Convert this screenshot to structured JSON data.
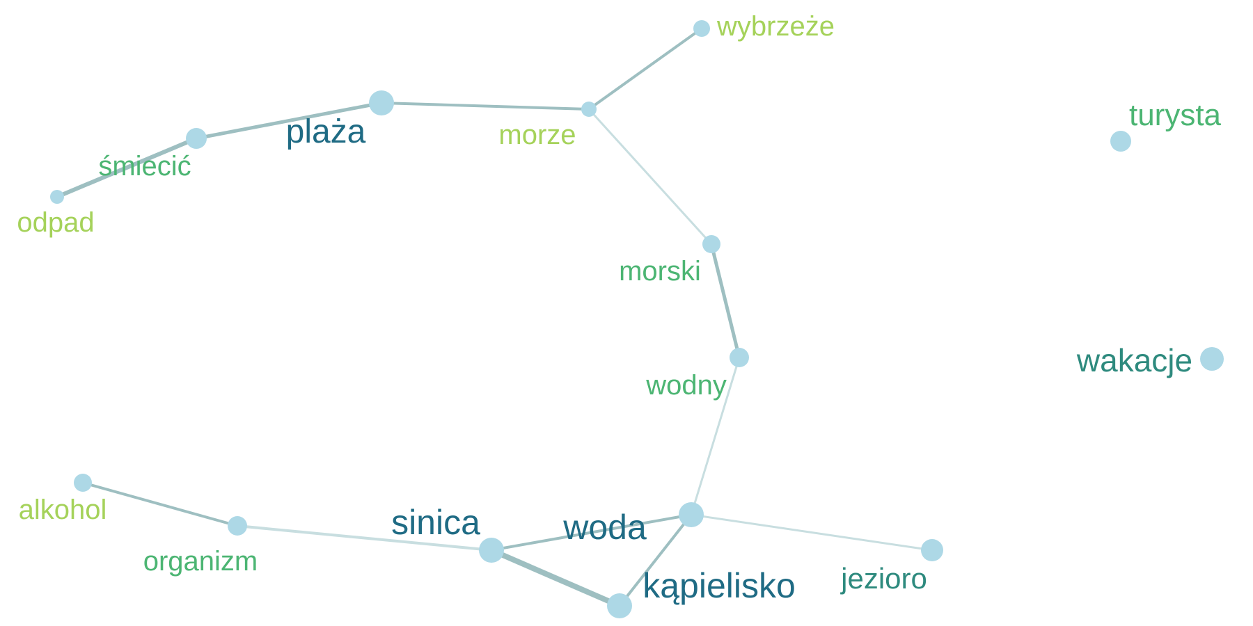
{
  "colors": {
    "node_fill": "#ADD8E6",
    "edge_dark": "#9EBFC1",
    "edge_light": "#C8DEE0",
    "label_dark_teal": "#1F6B84",
    "label_teal": "#2E8A7E",
    "label_green": "#4CB573",
    "label_lime": "#A5D25A"
  },
  "nodes": [
    {
      "id": "wybrzeze",
      "label": "wybrzeże"
    },
    {
      "id": "morze",
      "label": "morze"
    },
    {
      "id": "plaza",
      "label": "plaża"
    },
    {
      "id": "smiecic",
      "label": "śmiecić"
    },
    {
      "id": "odpad",
      "label": "odpad"
    },
    {
      "id": "morski",
      "label": "morski"
    },
    {
      "id": "wodny",
      "label": "wodny"
    },
    {
      "id": "turysta",
      "label": "turysta"
    },
    {
      "id": "wakacje",
      "label": "wakacje"
    },
    {
      "id": "alkohol",
      "label": "alkohol"
    },
    {
      "id": "organizm",
      "label": "organizm"
    },
    {
      "id": "sinica",
      "label": "sinica"
    },
    {
      "id": "woda",
      "label": "woda"
    },
    {
      "id": "kapielisko",
      "label": "kąpielisko"
    },
    {
      "id": "jezioro",
      "label": "jezioro"
    }
  ],
  "edges": [
    {
      "source": "odpad",
      "target": "smiecic"
    },
    {
      "source": "smiecic",
      "target": "plaza"
    },
    {
      "source": "plaza",
      "target": "morze"
    },
    {
      "source": "morze",
      "target": "wybrzeze"
    },
    {
      "source": "morze",
      "target": "morski"
    },
    {
      "source": "morski",
      "target": "wodny"
    },
    {
      "source": "wodny",
      "target": "woda"
    },
    {
      "source": "alkohol",
      "target": "organizm"
    },
    {
      "source": "organizm",
      "target": "sinica"
    },
    {
      "source": "sinica",
      "target": "woda"
    },
    {
      "source": "sinica",
      "target": "kapielisko"
    },
    {
      "source": "woda",
      "target": "kapielisko"
    },
    {
      "source": "woda",
      "target": "jezioro"
    }
  ]
}
